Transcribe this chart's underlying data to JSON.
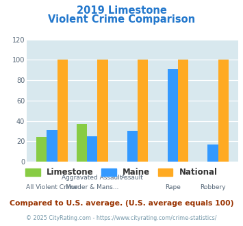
{
  "title_line1": "2019 Limestone",
  "title_line2": "Violent Crime Comparison",
  "categories": [
    "All Violent Crime",
    "Aggravated Assault",
    "Murder & Mans...",
    "Rape",
    "Robbery"
  ],
  "top_labels": [
    "",
    "Aggravated Assault",
    "Assault",
    "",
    ""
  ],
  "bot_labels": [
    "All Violent Crime",
    "Murder & Mans...",
    "",
    "Rape",
    "Robbery"
  ],
  "limestone": [
    24,
    37,
    0,
    0,
    0
  ],
  "maine": [
    31,
    25,
    30,
    91,
    17
  ],
  "national": [
    100,
    100,
    100,
    100,
    100
  ],
  "color_limestone": "#88cc44",
  "color_maine": "#3399ff",
  "color_national": "#ffaa22",
  "ylim": [
    0,
    120
  ],
  "yticks": [
    0,
    20,
    40,
    60,
    80,
    100,
    120
  ],
  "background_color": "#d8e8ee",
  "legend_labels": [
    "Limestone",
    "Maine",
    "National"
  ],
  "subtitle": "Compared to U.S. average. (U.S. average equals 100)",
  "footer": "© 2025 CityRating.com - https://www.cityrating.com/crime-statistics/",
  "title_color": "#2277cc",
  "subtitle_color": "#993300",
  "footer_color": "#7799aa"
}
